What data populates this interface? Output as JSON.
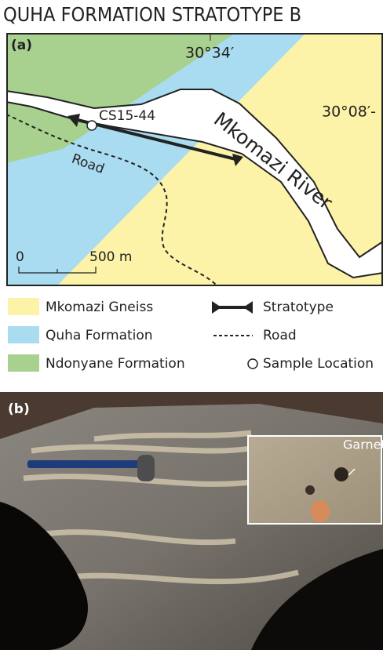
{
  "title": "QUHA FORMATION STRATOTYPE B",
  "panel_a": {
    "label": "(a)",
    "lat_labels": [
      "30°34′",
      "30°08′-"
    ],
    "river_label": "Mkomazi River",
    "sample_label": "CS15-44",
    "road_label": "Road",
    "scale_labels": [
      "0",
      "500 m"
    ]
  },
  "legend": [
    {
      "label": "Mkomazi Gneiss"
    },
    {
      "label": "Quha Formation"
    },
    {
      "label": "Ndonyane Formation"
    },
    {
      "label": "Stratotype"
    },
    {
      "label": "Road"
    },
    {
      "label": "Sample Location"
    }
  ],
  "panel_b": {
    "label": "(b)",
    "inset_label": "Garnet"
  }
}
